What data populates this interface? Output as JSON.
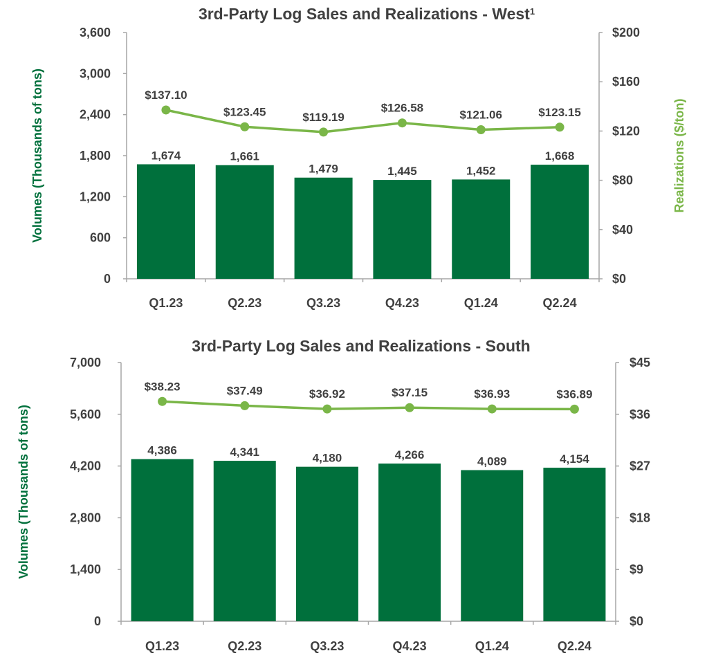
{
  "chart_data": [
    {
      "type": "bar",
      "title": "3rd-Party Log Sales and Realizations - West",
      "title_superscript": "1",
      "categories": [
        "Q1.23",
        "Q2.23",
        "Q3.23",
        "Q4.23",
        "Q1.24",
        "Q2.24"
      ],
      "ylabel": "Volumes (Thousands of tons)",
      "y2label": "Realizations ($/ton)",
      "ylim": [
        0,
        3600
      ],
      "yticks": [
        "0",
        "600",
        "1,200",
        "1,800",
        "2,400",
        "3,000",
        "3,600"
      ],
      "ytick_values": [
        0,
        600,
        1200,
        1800,
        2400,
        3000,
        3600
      ],
      "y2lim": [
        0,
        200
      ],
      "y2ticks": [
        "$0",
        "$40",
        "$80",
        "$120",
        "$160",
        "$200"
      ],
      "y2tick_values": [
        0,
        40,
        80,
        120,
        160,
        200
      ],
      "series": [
        {
          "type": "bar",
          "axis": "left",
          "values": [
            1674,
            1661,
            1479,
            1445,
            1452,
            1668
          ],
          "labels": [
            "1,674",
            "1,661",
            "1,479",
            "1,445",
            "1,452",
            "1,668"
          ]
        },
        {
          "type": "line",
          "axis": "right",
          "values": [
            137.1,
            123.45,
            119.19,
            126.58,
            121.06,
            123.15
          ],
          "labels": [
            "$137.10",
            "$123.45",
            "$119.19",
            "$126.58",
            "$121.06",
            "$123.15"
          ]
        }
      ]
    },
    {
      "type": "bar",
      "title": "3rd-Party Log Sales and Realizations - South",
      "title_superscript": "",
      "categories": [
        "Q1.23",
        "Q2.23",
        "Q3.23",
        "Q4.23",
        "Q1.24",
        "Q2.24"
      ],
      "ylabel": "Volumes (Thousands of tons)",
      "y2label": "",
      "ylim": [
        0,
        7000
      ],
      "yticks": [
        "0",
        "1,400",
        "2,800",
        "4,200",
        "5,600",
        "7,000"
      ],
      "ytick_values": [
        0,
        1400,
        2800,
        4200,
        5600,
        7000
      ],
      "y2lim": [
        0,
        45
      ],
      "y2ticks": [
        "$0",
        "$9",
        "$18",
        "$27",
        "$36",
        "$45"
      ],
      "y2tick_values": [
        0,
        9,
        18,
        27,
        36,
        45
      ],
      "series": [
        {
          "type": "bar",
          "axis": "left",
          "values": [
            4386,
            4341,
            4180,
            4266,
            4089,
            4154
          ],
          "labels": [
            "4,386",
            "4,341",
            "4,180",
            "4,266",
            "4,089",
            "4,154"
          ]
        },
        {
          "type": "line",
          "axis": "right",
          "values": [
            38.23,
            37.49,
            36.92,
            37.15,
            36.93,
            36.89
          ],
          "labels": [
            "$38.23",
            "$37.49",
            "$36.92",
            "$37.15",
            "$36.93",
            "$36.89"
          ]
        }
      ]
    }
  ],
  "colors": {
    "bar": "#00703c",
    "line": "#7ab648",
    "text": "#404040",
    "axis": "#a6a6a6"
  }
}
